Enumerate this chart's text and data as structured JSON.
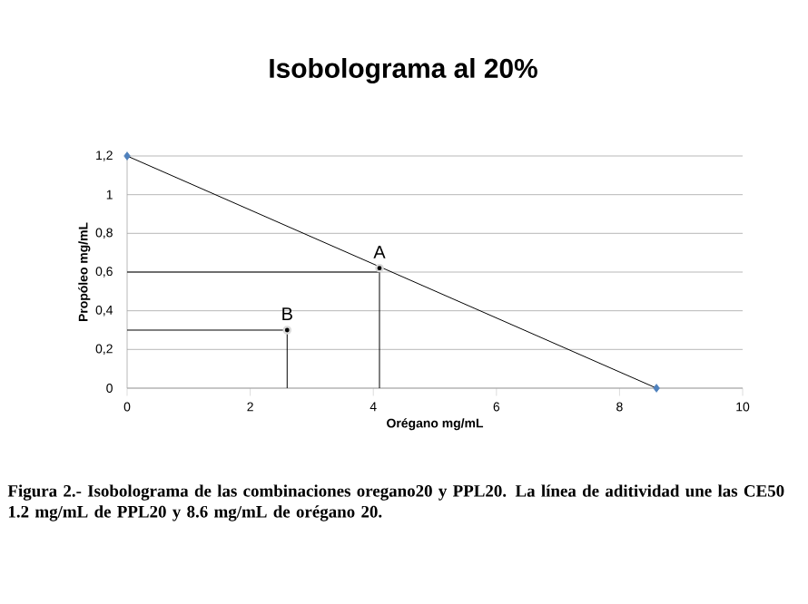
{
  "chart_data": {
    "type": "line",
    "title": "Isobolograma al 20%",
    "xlabel": "Orégano mg/mL",
    "ylabel": "Propóleo mg/mL",
    "xlim": [
      0,
      10
    ],
    "xticks": [
      0,
      2,
      4,
      6,
      8,
      10
    ],
    "ylim": [
      0,
      1.2
    ],
    "yticks": [
      0,
      {
        "value": 0.2,
        "label": "0,2"
      },
      {
        "value": 0.4,
        "label": "0,4"
      },
      {
        "value": 0.6,
        "label": "0,6"
      },
      {
        "value": 0.8,
        "label": "0,8"
      },
      1,
      {
        "value": 1.2,
        "label": "1,2"
      }
    ],
    "grid": "y",
    "series": [
      {
        "type": "line",
        "color": "#000000",
        "marker": "none",
        "x": [
          0,
          8.6
        ],
        "values": [
          1.2,
          0
        ]
      },
      {
        "type": "scatter",
        "color": "#4f81bd",
        "marker": "diamond",
        "x": [
          0,
          8.6
        ],
        "values": [
          1.2,
          0
        ]
      },
      {
        "type": "line",
        "color": "#000000",
        "marker": "none",
        "x": [
          0,
          4.1,
          4.1
        ],
        "values": [
          0.6,
          0.6,
          0
        ]
      },
      {
        "type": "line",
        "color": "#000000",
        "marker": "none",
        "x": [
          0,
          2.6,
          2.6
        ],
        "values": [
          0.3,
          0.3,
          0
        ]
      },
      {
        "type": "scatter",
        "color": "#000000",
        "marker": "circle",
        "x": [
          4.1,
          2.6
        ],
        "values": [
          0.62,
          0.3
        ]
      }
    ],
    "annotations": [
      {
        "text": "A",
        "x": 4.1,
        "y": 0.62
      },
      {
        "text": "B",
        "x": 2.6,
        "y": 0.3
      },
      "Figura 2.- Isobolograma de las combinaciones oregano20 y PPL20. La línea de aditividad une las CE50 1.2 mg/mL de PPL20 y 8.6 mg/mL de orégano 20."
    ]
  }
}
